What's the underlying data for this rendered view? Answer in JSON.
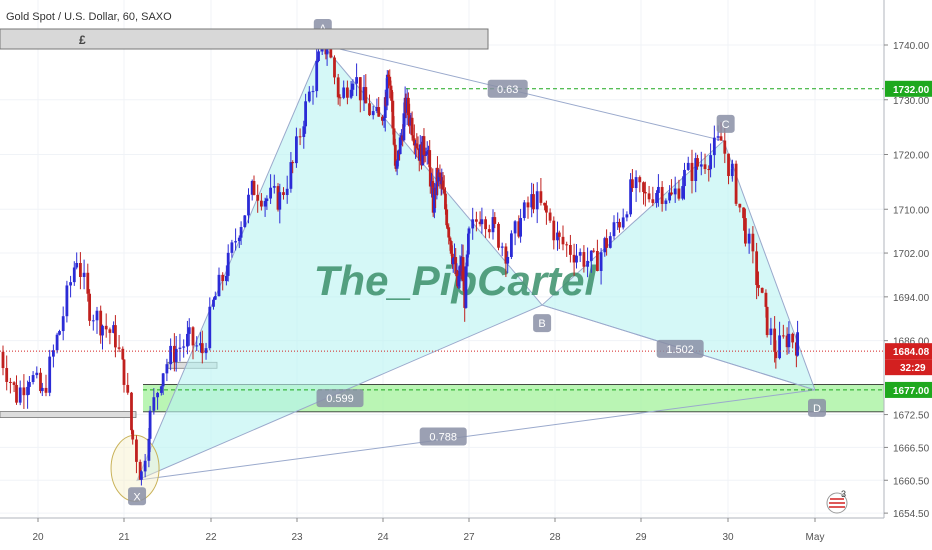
{
  "symbol_title": "Gold Spot / U.S. Dollar, 60, SAXO",
  "watermark": "The_PipCartel",
  "currency_box": "£",
  "countdown": "32:29",
  "event_badge": "3",
  "colors": {
    "up_candle": "#2b2bd6",
    "down_candle": "#c0201e",
    "pattern_fill": "#b9f4f2",
    "pattern_line": "#9aa9cc",
    "zone_fill": "#a9f2a1",
    "green_level": "#1ea81e",
    "price_line": "#d32020",
    "watermark": "#3b8f6a",
    "point_label_bg": "#8a8fa6"
  },
  "chart_data": {
    "type": "candlestick",
    "title": "Gold Spot / U.S. Dollar, 60, SAXO",
    "ylim": [
      1652,
      1748
    ],
    "y_ticks": [
      "1740.00",
      "1730.00",
      "1720.00",
      "1710.00",
      "1702.00",
      "1694.00",
      "1686.00",
      "1672.50",
      "1666.50",
      "1660.50",
      "1654.50"
    ],
    "x_ticks": [
      "20",
      "21",
      "22",
      "23",
      "24",
      "27",
      "28",
      "29",
      "30",
      "May"
    ],
    "price_tags": [
      {
        "label": "1732.00",
        "value": 1732.0,
        "color": "#1ea81e"
      },
      {
        "label": "1684.08",
        "value": 1684.08,
        "color": "#d32020"
      },
      {
        "label": "1677.00",
        "value": 1677.0,
        "color": "#1ea81e"
      }
    ],
    "harmonic_points": [
      {
        "label": "X",
        "day": 21.15,
        "price": 1660.5
      },
      {
        "label": "A",
        "day": 23.3,
        "price": 1740.0
      },
      {
        "label": "B",
        "day": 27.85,
        "price": 1692.5
      },
      {
        "label": "C",
        "day": 29.95,
        "price": 1722.5
      },
      {
        "label": "D",
        "day": 31.0,
        "price": 1677.0
      }
    ],
    "ratios": [
      {
        "label": "0.63",
        "between": "A-C",
        "day": 27.45,
        "price": 1732.0
      },
      {
        "label": "1.502",
        "between": "B-D",
        "day": 29.45,
        "price": 1684.5
      },
      {
        "label": "0.599",
        "between": "X-B",
        "day": 23.5,
        "price": 1675.5
      },
      {
        "label": "0.788",
        "between": "X-D",
        "day": 26.1,
        "price": 1668.5
      }
    ],
    "support_zone": {
      "from": 1673.0,
      "to": 1678.0
    },
    "dashed_levels": [
      1732.0,
      1677.0
    ],
    "ohlc_path": [
      [
        19.55,
        1684.0
      ],
      [
        19.75,
        1676.0
      ],
      [
        19.9,
        1680.0
      ],
      [
        20.05,
        1676.0
      ],
      [
        20.25,
        1688.0
      ],
      [
        20.45,
        1701.5
      ],
      [
        20.6,
        1692.0
      ],
      [
        20.75,
        1689.0
      ],
      [
        20.9,
        1686.5
      ],
      [
        21.0,
        1680.0
      ],
      [
        21.1,
        1668.0
      ],
      [
        21.2,
        1661.5
      ],
      [
        21.3,
        1672.0
      ],
      [
        21.45,
        1681.0
      ],
      [
        21.6,
        1684.5
      ],
      [
        21.75,
        1686.0
      ],
      [
        21.9,
        1684.0
      ],
      [
        22.05,
        1694.0
      ],
      [
        22.2,
        1700.0
      ],
      [
        22.35,
        1708.0
      ],
      [
        22.5,
        1714.0
      ],
      [
        22.65,
        1712.0
      ],
      [
        22.8,
        1712.0
      ],
      [
        22.95,
        1718.0
      ],
      [
        23.1,
        1728.5
      ],
      [
        23.25,
        1737.0
      ],
      [
        23.35,
        1740.0
      ],
      [
        23.5,
        1730.0
      ],
      [
        23.65,
        1735.0
      ],
      [
        23.8,
        1729.0
      ],
      [
        23.95,
        1726.0
      ],
      [
        24.1,
        1731.0
      ],
      [
        24.15,
        1736.5
      ],
      [
        24.3,
        1730.0
      ],
      [
        24.45,
        1716.0
      ],
      [
        24.6,
        1722.0
      ],
      [
        24.8,
        1729.0
      ],
      [
        25.05,
        1725.0
      ],
      [
        25.3,
        1720.0
      ],
      [
        25.5,
        1722.0
      ],
      [
        25.65,
        1716.0
      ],
      [
        25.75,
        1711.0
      ],
      [
        25.9,
        1716.0
      ],
      [
        26.05,
        1714.0
      ],
      [
        26.25,
        1708.0
      ],
      [
        26.45,
        1701.0
      ],
      [
        26.6,
        1696.0
      ],
      [
        26.75,
        1700.0
      ],
      [
        26.85,
        1694.0
      ],
      [
        27.0,
        1705.0
      ],
      [
        27.15,
        1710.0
      ],
      [
        27.3,
        1706.0
      ],
      [
        27.45,
        1702.0
      ],
      [
        27.6,
        1708.0
      ],
      [
        27.75,
        1712.0
      ],
      [
        27.9,
        1709.0
      ],
      [
        28.05,
        1704.0
      ],
      [
        28.25,
        1702.0
      ],
      [
        28.45,
        1700.0
      ],
      [
        28.6,
        1704.0
      ],
      [
        28.75,
        1708.0
      ],
      [
        28.9,
        1714.0
      ],
      [
        29.05,
        1712.0
      ],
      [
        29.2,
        1714.0
      ],
      [
        29.35,
        1712.0
      ],
      [
        29.5,
        1716.0
      ],
      [
        29.65,
        1718.0
      ],
      [
        29.8,
        1720.0
      ],
      [
        29.92,
        1722.5
      ],
      [
        30.05,
        1716.0
      ],
      [
        30.2,
        1706.0
      ],
      [
        30.35,
        1696.0
      ],
      [
        30.45,
        1689.0
      ],
      [
        30.55,
        1684.0
      ],
      [
        30.7,
        1687.0
      ],
      [
        30.8,
        1685.5
      ],
      [
        30.9,
        1684.08
      ]
    ]
  }
}
